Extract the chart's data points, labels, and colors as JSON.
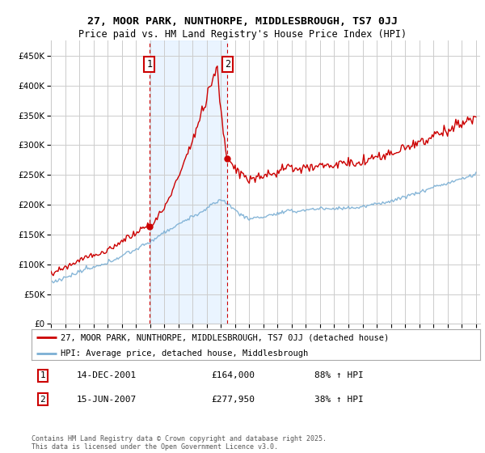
{
  "title_line1": "27, MOOR PARK, NUNTHORPE, MIDDLESBROUGH, TS7 0JJ",
  "title_line2": "Price paid vs. HM Land Registry's House Price Index (HPI)",
  "legend_line1": "27, MOOR PARK, NUNTHORPE, MIDDLESBROUGH, TS7 0JJ (detached house)",
  "legend_line2": "HPI: Average price, detached house, Middlesbrough",
  "annotation1_date": "14-DEC-2001",
  "annotation1_price": "£164,000",
  "annotation1_hpi": "88% ↑ HPI",
  "annotation2_date": "15-JUN-2007",
  "annotation2_price": "£277,950",
  "annotation2_hpi": "38% ↑ HPI",
  "footer": "Contains HM Land Registry data © Crown copyright and database right 2025.\nThis data is licensed under the Open Government Licence v3.0.",
  "property_color": "#cc0000",
  "hpi_color": "#7bafd4",
  "background_color": "#ffffff",
  "grid_color": "#cccccc",
  "annotation_vline_color": "#cc0000",
  "annotation_shade_color": "#ddeeff",
  "ylim_min": 0,
  "ylim_max": 475000,
  "sale1_year": 2001.958,
  "sale1_price": 164000,
  "sale2_year": 2007.458,
  "sale2_price": 277950,
  "year_start": 1995,
  "year_end": 2025
}
